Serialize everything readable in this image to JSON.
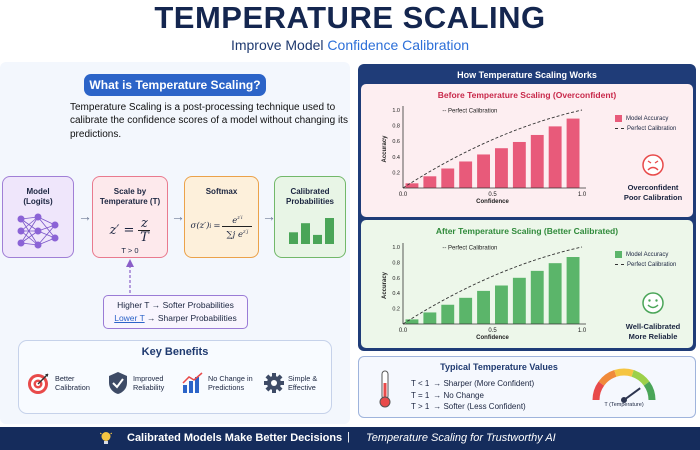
{
  "header": {
    "title": "TEMPERATURE SCALING",
    "subtitle_prefix": "Improve Model ",
    "subtitle_highlight": "Confidence Calibration"
  },
  "what_is": {
    "heading": "What is Temperature Scaling?",
    "description": "Temperature Scaling is a post-processing technique used to calibrate the confidence scores of a model without changing its predictions."
  },
  "pipeline": {
    "model": {
      "title": "Model",
      "subtitle": "(Logits)"
    },
    "scale": {
      "title": "Scale by",
      "subtitle": "Temperature (T)",
      "formula_lhs": "z′ =",
      "formula_num": "z",
      "formula_den": "T",
      "condition": "T > 0"
    },
    "softmax": {
      "title": "Softmax",
      "formula_lhs": "σ(z′)",
      "formula_sub": "i",
      "formula_eq": "=",
      "formula_num": "e",
      "formula_num_sup": "z′i",
      "formula_den": "∑j e",
      "formula_den_sup": "z′j"
    },
    "calibrated": {
      "title": "Calibrated",
      "subtitle": "Probabilities",
      "bar_levels": [
        0.45,
        0.8,
        0.35,
        1.0
      ]
    },
    "note_line1": "Higher T → Softer Probabilities",
    "note_line2_prefix": "Lower T",
    "note_line2_suffix": " → Sharper Probabilities"
  },
  "benefits": {
    "heading": "Key Benefits",
    "items": [
      {
        "icon": "target-icon",
        "line1": "Better",
        "line2": "Calibration"
      },
      {
        "icon": "shield-check-icon",
        "line1": "Improved",
        "line2": "Reliability"
      },
      {
        "icon": "bar-chart-icon",
        "line1": "No Change in",
        "line2": "Predictions"
      },
      {
        "icon": "gear-icon",
        "line1": "Simple &",
        "line2": "Effective"
      }
    ]
  },
  "how_it_works": {
    "heading": "How Temperature Scaling Works"
  },
  "chart_data": [
    {
      "type": "bar",
      "title": "Before Temperature Scaling (Overconfident)",
      "xlabel": "Confidence",
      "ylabel": "Accuracy",
      "xlim": [
        0,
        1
      ],
      "ylim": [
        0,
        1
      ],
      "x_ticks": [
        0.0,
        0.5,
        1.0
      ],
      "y_ticks": [
        0.2,
        0.4,
        0.6,
        0.8,
        1.0
      ],
      "x": [
        0.05,
        0.15,
        0.25,
        0.35,
        0.45,
        0.55,
        0.65,
        0.75,
        0.85,
        0.95
      ],
      "values": [
        0.06,
        0.15,
        0.25,
        0.34,
        0.43,
        0.51,
        0.59,
        0.68,
        0.79,
        0.89
      ],
      "reference_line": {
        "label": "Perfect Calibration",
        "style": "dashed"
      },
      "legend": [
        "Model Accuracy",
        "Perfect Calibration"
      ],
      "color": "#e85a7a",
      "status_icon": "sad-face-icon",
      "status_line1": "Overconfident",
      "status_line2": "Poor Calibration"
    },
    {
      "type": "bar",
      "title": "After Temperature Scaling (Better Calibrated)",
      "xlabel": "Confidence",
      "ylabel": "Accuracy",
      "xlim": [
        0,
        1
      ],
      "ylim": [
        0,
        1
      ],
      "x_ticks": [
        0.0,
        0.5,
        1.0
      ],
      "y_ticks": [
        0.2,
        0.4,
        0.6,
        0.8,
        1.0
      ],
      "x": [
        0.05,
        0.15,
        0.25,
        0.35,
        0.45,
        0.55,
        0.65,
        0.75,
        0.85,
        0.95
      ],
      "values": [
        0.06,
        0.15,
        0.25,
        0.34,
        0.43,
        0.5,
        0.6,
        0.69,
        0.79,
        0.87
      ],
      "reference_line": {
        "label": "Perfect Calibration",
        "style": "dashed"
      },
      "legend": [
        "Model Accuracy",
        "Perfect Calibration"
      ],
      "color": "#5bb56a",
      "status_icon": "smile-face-icon",
      "status_line1": "Well-Calibrated",
      "status_line2": "More Reliable"
    }
  ],
  "typical_values": {
    "heading": "Typical Temperature Values",
    "rows": [
      {
        "cond": "T < 1",
        "desc": "Sharper (More Confident)"
      },
      {
        "cond": "T = 1",
        "desc": "No Change"
      },
      {
        "cond": "T > 1",
        "desc": "Softer (Less Confident)"
      }
    ],
    "gauge_label": "T (Temperature)",
    "gauge_level": 0.8
  },
  "footer": {
    "left": "Calibrated Models Make Better Decisions",
    "separator": "|",
    "right": "Temperature Scaling for Trustworthy AI"
  },
  "colors": {
    "navy": "#14264f",
    "accent_blue": "#2c64c8",
    "pink": "#e85a7a",
    "green": "#5bb56a"
  }
}
